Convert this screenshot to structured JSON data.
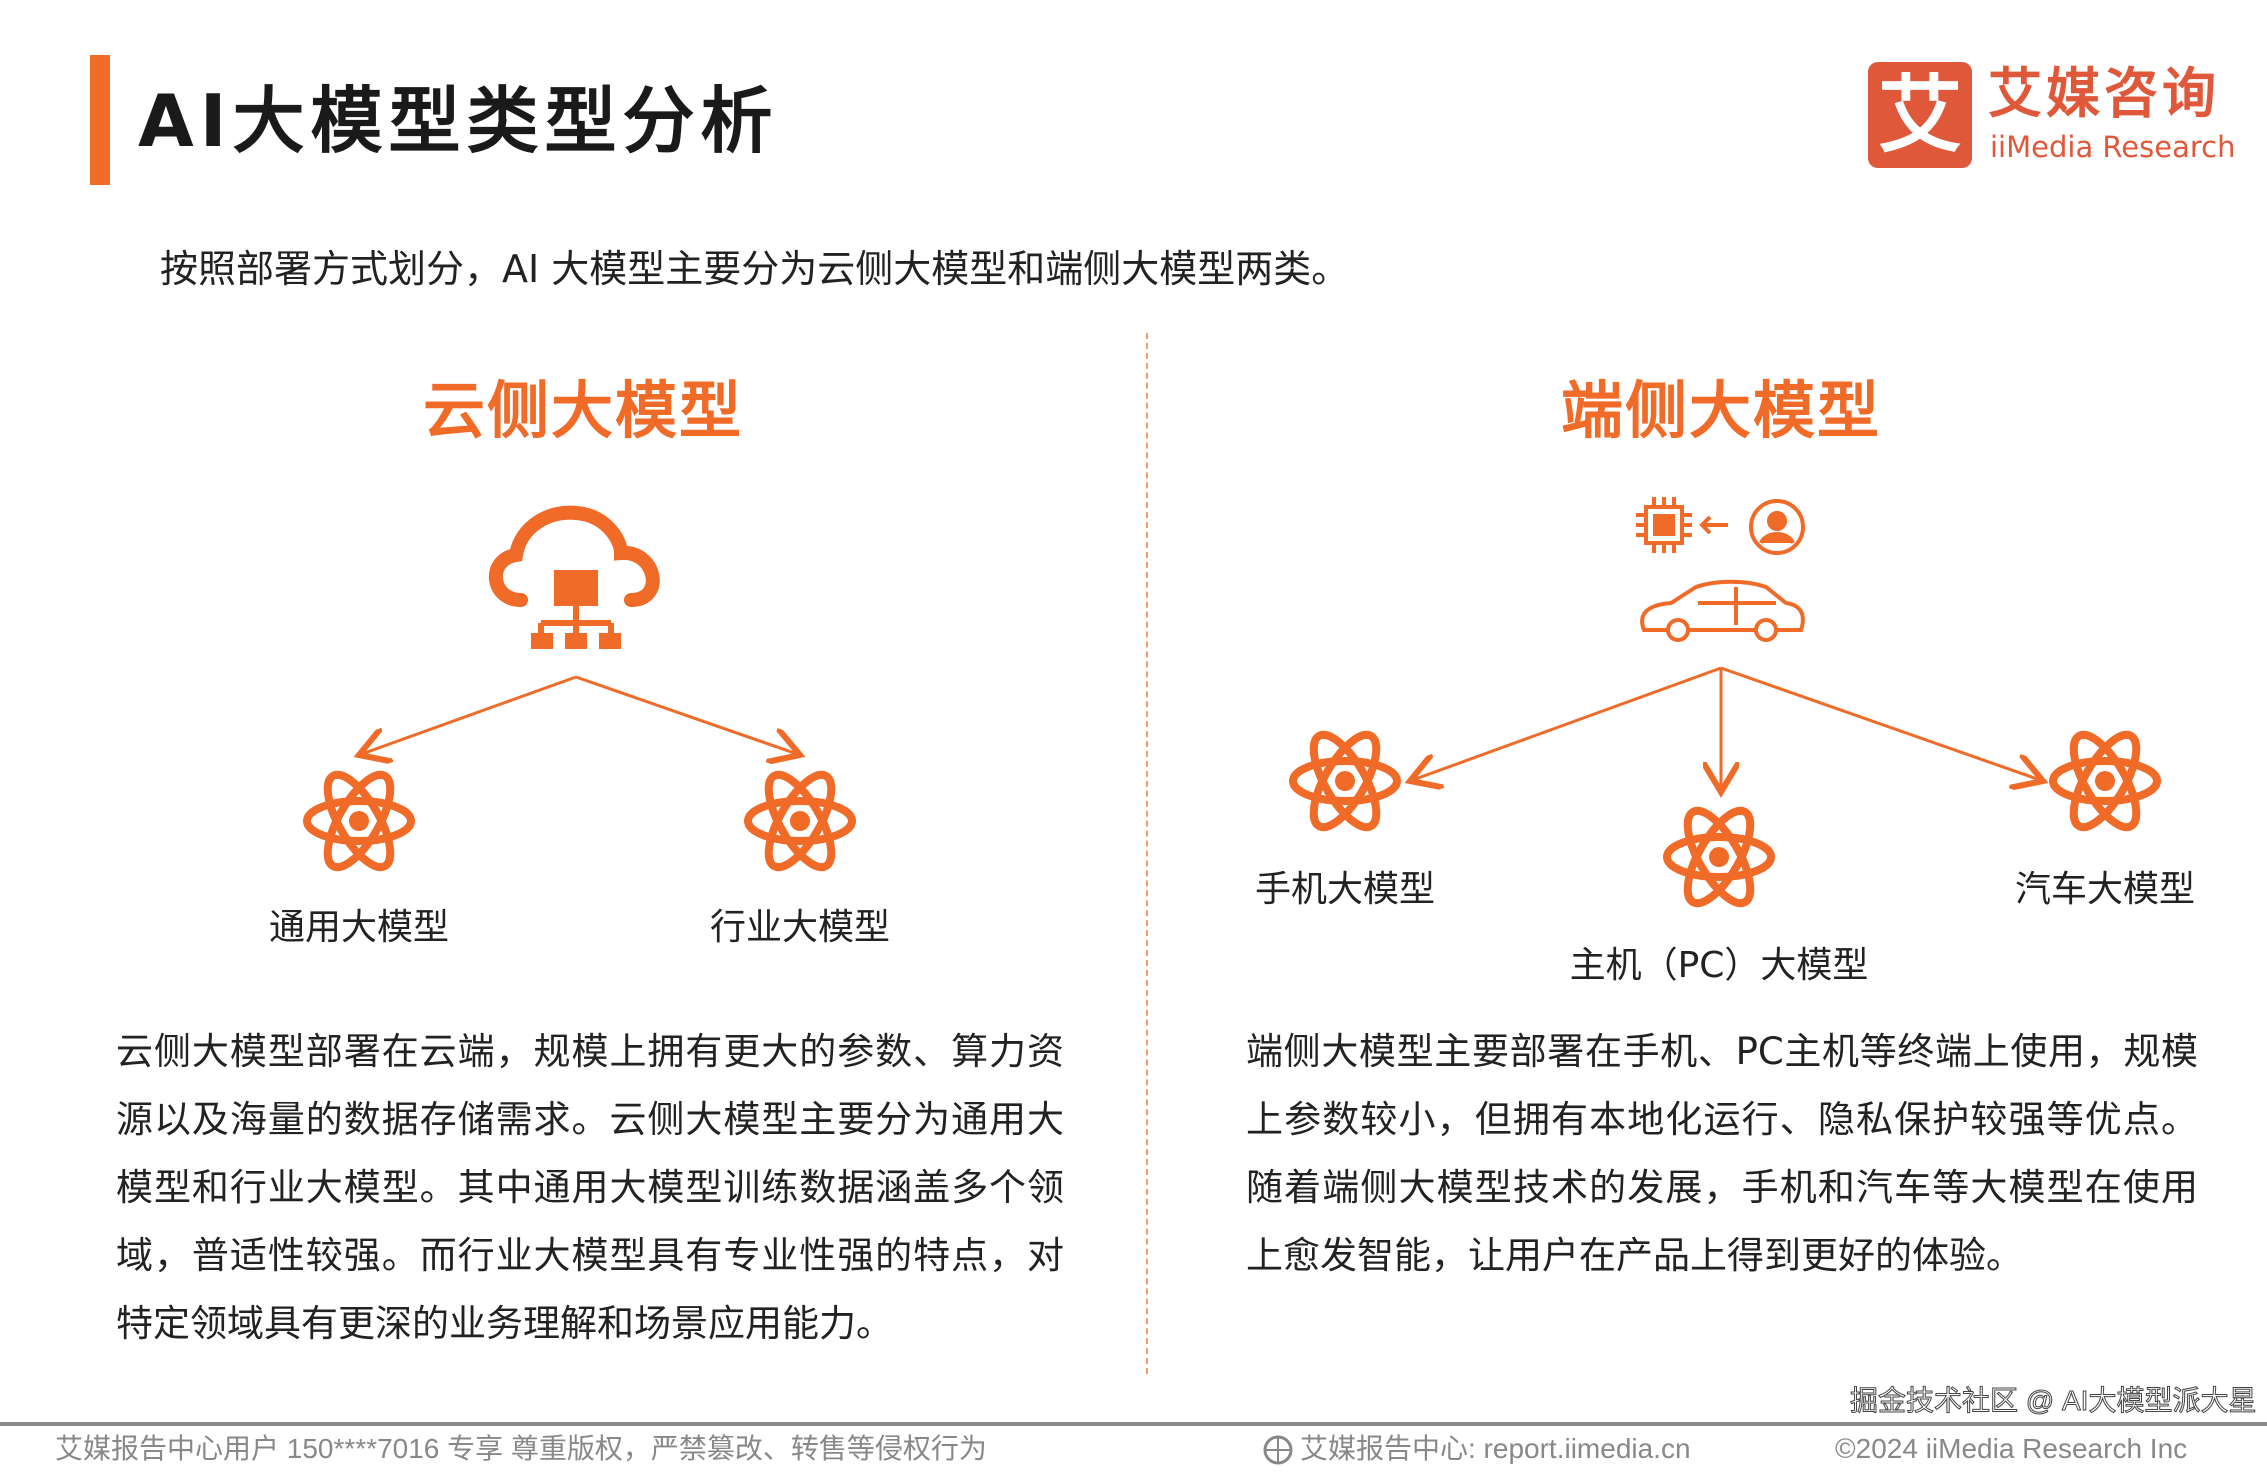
{
  "header": {
    "title": "AI大模型类型分析",
    "subtitle": "按照部署方式划分，AI 大模型主要分为云侧大模型和端侧大模型两类。"
  },
  "logo": {
    "mark": "艾",
    "cn": "艾媒咨询",
    "en": "iiMedia Research"
  },
  "colors": {
    "accent": "#f06a28",
    "logo": "#e0583a"
  },
  "cloud": {
    "heading": "云侧大模型",
    "icon": "cloud-server-icon",
    "children": [
      "通用大模型",
      "行业大模型"
    ],
    "paragraph": "云侧大模型部署在云端，规模上拥有更大的参数、算力资源以及海量的数据存储需求。云侧大模型主要分为通用大模型和行业大模型。其中通用大模型训练数据涵盖多个领域，普适性较强。而行业大模型具有专业性强的特点，对特定领域具有更深的业务理解和场景应用能力。"
  },
  "edge": {
    "heading": "端侧大模型",
    "icon": "chip-user-car-icon",
    "children": [
      "手机大模型",
      "主机（PC）大模型",
      "汽车大模型"
    ],
    "paragraph": "端侧大模型主要部署在手机、PC主机等终端上使用，规模上参数较小，但拥有本地化运行、隐私保护较强等优点。随着端侧大模型技术的发展，手机和汽车等大模型在使用上愈发智能，让用户在产品上得到更好的体验。"
  },
  "footer": {
    "copyright_notice": "艾媒报告中心用户 150****7016 专享 尊重版权，严禁篡改、转售等侵权行为",
    "center": "艾媒报告中心: report.iimedia.cn",
    "right": "©2024 iiMedia Research Inc",
    "watermark": "掘金技术社区 @ AI大模型派大星"
  }
}
